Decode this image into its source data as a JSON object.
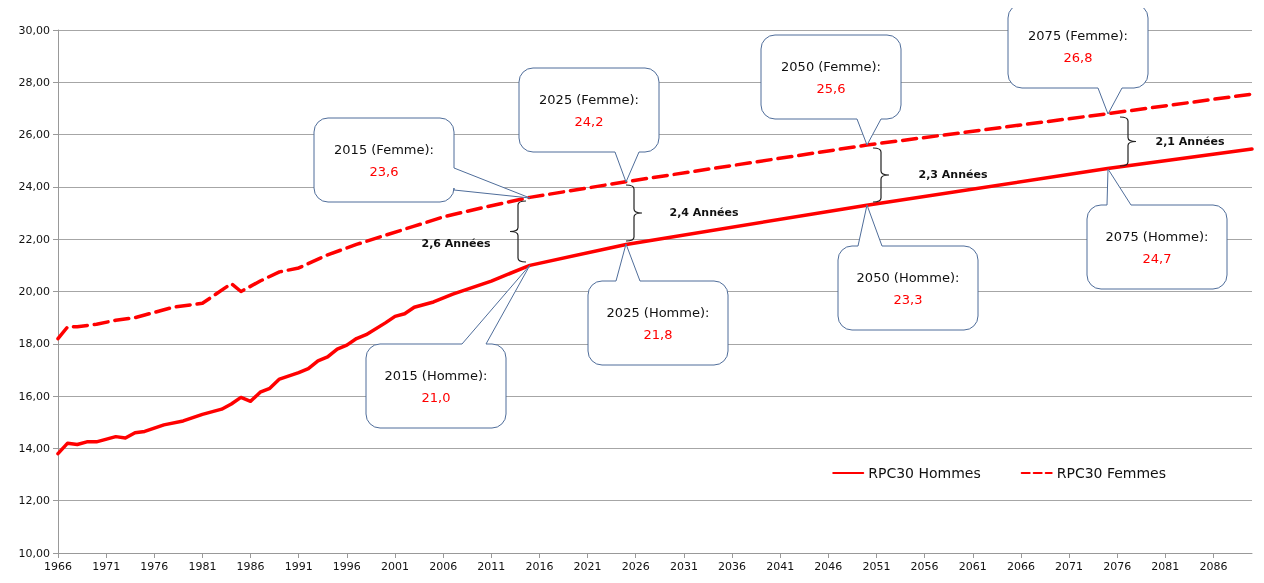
{
  "chart_data": {
    "type": "line",
    "xlim": [
      1966,
      2090
    ],
    "xticks": [
      1966,
      1971,
      1976,
      1981,
      1986,
      1991,
      1996,
      2001,
      2006,
      2011,
      2016,
      2021,
      2026,
      2031,
      2036,
      2041,
      2046,
      2051,
      2056,
      2061,
      2066,
      2071,
      2076,
      2081,
      2086
    ],
    "ylim": [
      10,
      30
    ],
    "yticks": [
      {
        "value": 10,
        "label": "10,00"
      },
      {
        "value": 12,
        "label": "12,00"
      },
      {
        "value": 14,
        "label": "14,00"
      },
      {
        "value": 16,
        "label": "16,00"
      },
      {
        "value": 18,
        "label": "18,00"
      },
      {
        "value": 20,
        "label": "20,00"
      },
      {
        "value": 22,
        "label": "22,00"
      },
      {
        "value": 24,
        "label": "24,00"
      },
      {
        "value": 26,
        "label": "26,00"
      },
      {
        "value": 28,
        "label": "28,00"
      },
      {
        "value": 30,
        "label": "30,00"
      }
    ],
    "grid": "y",
    "legend": "bottom right",
    "marker": "none",
    "series": [
      {
        "name": "RPC30 Hommes",
        "color": "#ff0000",
        "line_style": "solid",
        "x": [
          1966,
          1967,
          1968,
          1969,
          1970,
          1972,
          1973,
          1974,
          1975,
          1977,
          1979,
          1981,
          1983,
          1984,
          1985,
          1986,
          1987,
          1988,
          1989,
          1991,
          1992,
          1993,
          1994,
          1995,
          1996,
          1997,
          1998,
          2000,
          2001,
          2002,
          2003,
          2005,
          2007,
          2009,
          2011,
          2015,
          2025,
          2050,
          2075,
          2090
        ],
        "values": [
          13.8,
          14.2,
          14.15,
          14.25,
          14.25,
          14.45,
          14.4,
          14.6,
          14.65,
          14.9,
          15.05,
          15.3,
          15.5,
          15.7,
          15.95,
          15.8,
          16.15,
          16.3,
          16.65,
          16.9,
          17.05,
          17.35,
          17.5,
          17.8,
          17.95,
          18.2,
          18.35,
          18.8,
          19.05,
          19.15,
          19.4,
          19.6,
          19.9,
          20.15,
          20.4,
          21.0,
          21.8,
          23.3,
          24.7,
          25.45
        ]
      },
      {
        "name": "RPC30 Femmes",
        "color": "#ff0000",
        "line_style": "dashed",
        "x": [
          1966,
          1967,
          1968,
          1970,
          1972,
          1974,
          1976,
          1978,
          1981,
          1984,
          1985,
          1987,
          1989,
          1991,
          1994,
          1997,
          2000,
          2003,
          2006,
          2010,
          2015,
          2025,
          2050,
          2075,
          2090
        ],
        "values": [
          18.2,
          18.65,
          18.65,
          18.75,
          18.9,
          19.0,
          19.2,
          19.4,
          19.55,
          20.3,
          20.0,
          20.4,
          20.75,
          20.9,
          21.4,
          21.8,
          22.15,
          22.5,
          22.85,
          23.2,
          23.6,
          24.2,
          25.6,
          26.8,
          27.55
        ]
      }
    ],
    "annotations": [
      "2015 (Femme):\n23,6",
      "2025 (Femme):\n24,2",
      "2050 (Femme):\n25,6",
      "2075 (Femme):\n26,8",
      "2015 (Homme):\n21,0",
      "2025 (Homme):\n21,8",
      "2050 (Homme):\n23,3",
      "2075 (Homme):\n24,7",
      "2,6 Années",
      "2,4 Années",
      "2,3 Années",
      "2,1 Années"
    ]
  }
}
